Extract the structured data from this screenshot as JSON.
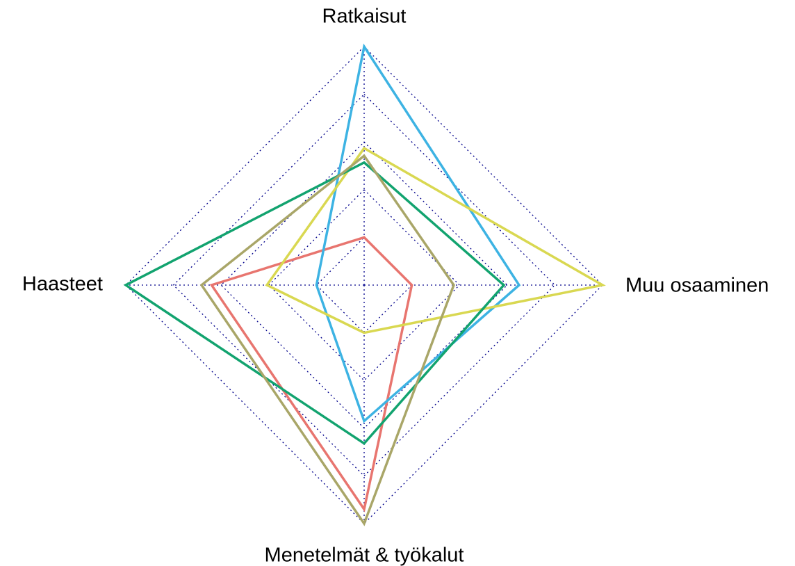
{
  "chart_data": {
    "type": "radar",
    "categories": [
      "Ratkaisut",
      "Muu osaaminen",
      "Menetelmät & työkalut",
      "Haasteet"
    ],
    "ylim": [
      0,
      5
    ],
    "yticks": [
      1,
      2,
      3,
      4,
      5
    ],
    "grid": true,
    "grid_color": "#00008b",
    "series": [
      {
        "color": "#e8756f",
        "values": [
          1,
          1,
          4.7,
          3.2
        ]
      },
      {
        "color": "#3db3e3",
        "values": [
          5,
          3.25,
          2.85,
          1
        ]
      },
      {
        "color": "#d9d851",
        "values": [
          2.87,
          5,
          1,
          2.04
        ]
      },
      {
        "color": "#12a36f",
        "values": [
          2.57,
          2.93,
          3.32,
          5
        ]
      },
      {
        "color": "#a9a668",
        "values": [
          2.71,
          1.88,
          5,
          3.41
        ]
      }
    ]
  }
}
